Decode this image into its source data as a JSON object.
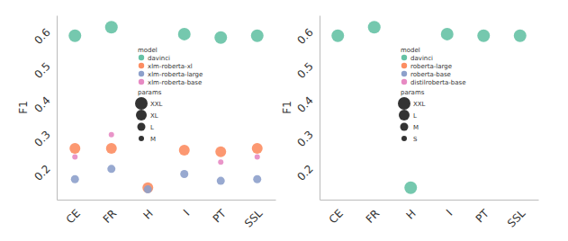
{
  "chart_data": [
    {
      "type": "scatter",
      "categories": [
        "CE",
        "FR",
        "H",
        "I",
        "PT",
        "SSL"
      ],
      "y_label": "F1",
      "ylim": [
        0.12,
        0.66
      ],
      "yticks": [
        0.2,
        0.3,
        0.4,
        0.5,
        0.6
      ],
      "legend": "center",
      "legend_title": "model",
      "size_legend": {
        "title": "params",
        "labels": [
          "XXL",
          "XL",
          "L",
          "M"
        ]
      },
      "series": [
        {
          "name": "davinci",
          "color": "#66c2a5",
          "params": "XXL",
          "values": [
            0.6,
            0.625,
            null,
            0.605,
            0.595,
            0.6
          ]
        },
        {
          "name": "xlm-roberta-xl",
          "color": "#fc8d62",
          "params": "XL",
          "values": [
            0.27,
            0.27,
            0.155,
            0.265,
            0.26,
            0.27
          ]
        },
        {
          "name": "xlm-roberta-large",
          "color": "#8da0cb",
          "params": "L",
          "values": [
            0.18,
            0.21,
            0.15,
            0.195,
            0.175,
            0.18
          ]
        },
        {
          "name": "xlm-roberta-base",
          "color": "#e78ac3",
          "params": "M",
          "values": [
            0.245,
            0.31,
            null,
            null,
            0.23,
            0.245
          ]
        }
      ]
    },
    {
      "type": "scatter",
      "categories": [
        "CE",
        "FR",
        "H",
        "I",
        "PT",
        "SSL"
      ],
      "y_label": "F1",
      "ylim": [
        0.12,
        0.66
      ],
      "yticks": [
        0.2,
        0.3,
        0.4,
        0.5,
        0.6
      ],
      "legend": "center",
      "legend_title": "model",
      "size_legend": {
        "title": "params",
        "labels": [
          "XXL",
          "L",
          "M",
          "S"
        ]
      },
      "series": [
        {
          "name": "davinci",
          "color": "#66c2a5",
          "params": "XXL",
          "values": [
            0.6,
            0.625,
            0.155,
            0.605,
            0.6,
            0.6
          ]
        },
        {
          "name": "roberta-large",
          "color": "#fc8d62",
          "params": "L",
          "values": [
            null,
            null,
            null,
            null,
            null,
            null
          ]
        },
        {
          "name": "roberta-base",
          "color": "#8da0cb",
          "params": "M",
          "values": [
            null,
            null,
            null,
            null,
            null,
            null
          ]
        },
        {
          "name": "distilroberta-base",
          "color": "#e78ac3",
          "params": "S",
          "values": [
            null,
            null,
            null,
            null,
            null,
            null
          ]
        }
      ]
    }
  ]
}
